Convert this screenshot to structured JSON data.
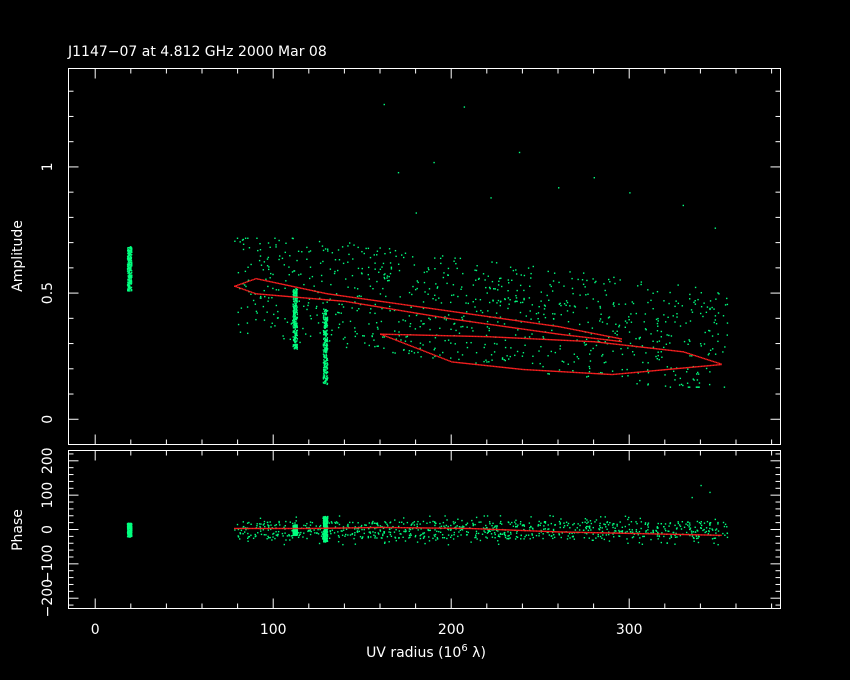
{
  "chart_data": {
    "type": "scatter",
    "title": "J1147−07 at 4.812 GHz 2000 Mar 08",
    "x_axis": {
      "label_prefix": "UV radius  (10",
      "label_exp": "6",
      "label_suffix": " λ)",
      "range": [
        -15,
        385
      ],
      "ticks": [
        0,
        100,
        200,
        300
      ],
      "tick_labels": [
        "0",
        "100",
        "200",
        "300"
      ],
      "minor_step": 20
    },
    "panels": [
      {
        "name": "amplitude",
        "ylabel": "Amplitude",
        "ylim": [
          -0.1,
          1.39
        ],
        "ticks": [
          0,
          0.5,
          1
        ],
        "tick_labels": [
          "0",
          "0.5",
          "1"
        ],
        "minor_step": 0.1
      },
      {
        "name": "phase",
        "ylabel": "Phase",
        "ylim": [
          -230,
          230
        ],
        "ticks": [
          -200,
          -100,
          0,
          100,
          200
        ],
        "tick_labels": [
          "−200",
          "−100",
          "0",
          "100",
          "200"
        ],
        "minor_step": 20
      }
    ],
    "series": [
      {
        "color": "#00ff7f",
        "clusters": [
          {
            "x": 19,
            "amp_range": [
              0.51,
              0.69
            ],
            "phase_range": [
              -20,
              20
            ]
          },
          {
            "x": 112,
            "amp_range": [
              0.28,
              0.52
            ],
            "phase_range": [
              -15,
              15
            ]
          },
          {
            "x": 129,
            "amp_range": [
              0.14,
              0.44
            ],
            "phase_range": [
              -35,
              40
            ]
          }
        ],
        "scatter_region": {
          "x_range": [
            78,
            355
          ],
          "amp_range": [
            0.13,
            0.72
          ],
          "phase_range": [
            -40,
            45
          ]
        },
        "outliers": [
          {
            "x": 162,
            "amp": 1.25
          },
          {
            "x": 207,
            "amp": 1.24
          },
          {
            "x": 238,
            "amp": 1.06
          },
          {
            "x": 170,
            "amp": 0.98
          },
          {
            "x": 190,
            "amp": 1.02
          },
          {
            "x": 260,
            "amp": 0.92
          },
          {
            "x": 280,
            "amp": 0.96
          },
          {
            "x": 300,
            "amp": 0.9
          },
          {
            "x": 330,
            "amp": 0.85
          },
          {
            "x": 222,
            "amp": 0.88
          },
          {
            "x": 180,
            "amp": 0.82
          },
          {
            "x": 348,
            "amp": 0.76
          },
          {
            "x": 340,
            "amp": 130
          },
          {
            "x": 345,
            "amp": 110
          },
          {
            "x": 335,
            "amp": 95
          }
        ]
      },
      {
        "color": "#ff2020",
        "model_track": {
          "upper_arc": [
            [
              78,
              0.53
            ],
            [
              90,
              0.56
            ],
            [
              130,
              0.5
            ],
            [
              200,
              0.43
            ],
            [
              260,
              0.37
            ],
            [
              296,
              0.32
            ]
          ],
          "lower_arc": [
            [
              78,
              0.53
            ],
            [
              90,
              0.5
            ],
            [
              140,
              0.47
            ],
            [
              200,
              0.4
            ],
            [
              260,
              0.34
            ],
            [
              296,
              0.31
            ]
          ],
          "outer_upper": [
            [
              160,
              0.34
            ],
            [
              220,
              0.33
            ],
            [
              280,
              0.31
            ],
            [
              330,
              0.27
            ],
            [
              352,
              0.22
            ]
          ],
          "outer_lower": [
            [
              160,
              0.34
            ],
            [
              200,
              0.23
            ],
            [
              240,
              0.2
            ],
            [
              290,
              0.18
            ],
            [
              352,
              0.22
            ]
          ],
          "phase_track": [
            [
              78,
              5
            ],
            [
              120,
              5
            ],
            [
              160,
              8
            ],
            [
              210,
              5
            ],
            [
              260,
              -5
            ],
            [
              352,
              -15
            ]
          ]
        }
      }
    ]
  }
}
